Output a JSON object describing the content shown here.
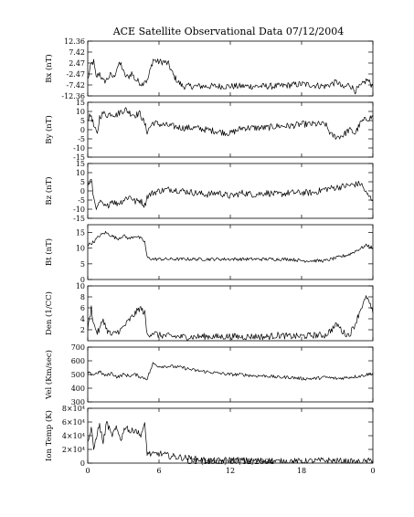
{
  "chart_data": {
    "type": "line",
    "title": "ACE Satellite Observational Data   07/12/2004",
    "xlabel": "UT (Hour)   07/12/2004",
    "x_ticks": [
      "0",
      "6",
      "12",
      "18",
      "0"
    ],
    "x_tick_hours": [
      0,
      6,
      12,
      18,
      24
    ],
    "xlim": [
      0,
      24
    ],
    "panels": [
      {
        "name": "Bx",
        "ylabel": "Bx (nT)",
        "ylim": [
          -12.36,
          12.36
        ],
        "yticks": [
          "12.36",
          "7.42",
          "2.47",
          "-2.47",
          "-7.42",
          "-12.36"
        ],
        "ytick_values": [
          12.36,
          7.42,
          2.47,
          -2.47,
          -7.42,
          -12.36
        ],
        "hours": [
          0,
          0.3,
          0.5,
          0.7,
          1.0,
          1.3,
          1.6,
          1.9,
          2.2,
          2.5,
          2.8,
          3.1,
          3.4,
          3.7,
          4.0,
          4.3,
          4.6,
          4.8,
          5.0,
          5.5,
          5.9,
          6.4,
          6.8,
          7.2,
          7.6,
          8,
          10,
          12,
          14,
          16,
          18,
          20,
          21,
          21.5,
          22,
          22.5,
          23,
          23.5,
          24
        ],
        "values": [
          -5,
          2,
          3,
          -4,
          -2,
          -6,
          -5,
          -3,
          -4,
          1,
          2,
          -3,
          -4,
          -2,
          -5,
          -6,
          -7,
          -5,
          -6,
          4,
          3,
          3,
          2,
          -3,
          -6,
          -8,
          -8,
          -8,
          -8,
          -8,
          -7,
          -8,
          -6,
          -9,
          -7,
          -10,
          -8,
          -5,
          -8
        ]
      },
      {
        "name": "By",
        "ylabel": "By (nT)",
        "ylim": [
          -15,
          15
        ],
        "yticks": [
          "15",
          "10",
          "5",
          "0",
          "-5",
          "-10",
          "-15"
        ],
        "ytick_values": [
          15,
          10,
          5,
          0,
          -5,
          -10,
          -15
        ],
        "hours": [
          0,
          0.3,
          0.5,
          0.8,
          1.0,
          1.3,
          1.6,
          2.0,
          2.4,
          2.8,
          3.2,
          3.6,
          4.0,
          4.4,
          4.8,
          5.0,
          5.5,
          6,
          7,
          8,
          9,
          10,
          11,
          12,
          13,
          14,
          15,
          16,
          17,
          18,
          19,
          20,
          20.5,
          21,
          21.5,
          22,
          22.5,
          23,
          23.5,
          24
        ],
        "values": [
          6,
          8,
          2,
          -3,
          7,
          9,
          8,
          9,
          8,
          10,
          11,
          9,
          8,
          9,
          3,
          -1,
          4,
          3,
          2,
          1,
          1,
          0,
          -1,
          -2,
          1,
          1,
          1,
          2,
          2,
          3,
          3,
          3,
          -3,
          -4,
          -3,
          0,
          -2,
          4,
          6,
          7
        ]
      },
      {
        "name": "Bz",
        "ylabel": "Bz (nT)",
        "ylim": [
          -15,
          15
        ],
        "yticks": [
          "15",
          "10",
          "5",
          "0",
          "-5",
          "-10",
          "-15"
        ],
        "ytick_values": [
          15,
          10,
          5,
          0,
          -5,
          -10,
          -15
        ],
        "hours": [
          0,
          0.3,
          0.5,
          0.8,
          1.0,
          1.3,
          1.6,
          2.0,
          2.4,
          2.8,
          3.2,
          3.6,
          4.0,
          4.4,
          4.8,
          5.0,
          5.5,
          6,
          7,
          8,
          9,
          10,
          11,
          12,
          13,
          14,
          15,
          16,
          17,
          18,
          19,
          20,
          21,
          22,
          23,
          23.5,
          24
        ],
        "values": [
          3,
          6,
          -4,
          -10,
          -6,
          -8,
          -9,
          -5,
          -7,
          -6,
          -4,
          -3,
          -6,
          -5,
          -8,
          -3,
          -1,
          0,
          1,
          0,
          -1,
          -2,
          -1,
          -3,
          -1,
          -2,
          -1,
          -2,
          -1,
          -1,
          -1,
          1,
          2,
          3,
          4,
          -2,
          -5
        ]
      },
      {
        "name": "Bt",
        "ylabel": "Bt (nT)",
        "ylim": [
          0,
          17.5
        ],
        "yticks": [
          "15",
          "10",
          "5",
          "0"
        ],
        "ytick_values": [
          15,
          10,
          5,
          0
        ],
        "hours": [
          0,
          0.5,
          1.0,
          1.5,
          2.0,
          2.5,
          3.0,
          3.5,
          4.0,
          4.5,
          4.8,
          5.0,
          5.5,
          6,
          7,
          8,
          9,
          10,
          11,
          12,
          13,
          14,
          15,
          16,
          17,
          18,
          19,
          20,
          21,
          22,
          22.5,
          23,
          23.5,
          24
        ],
        "values": [
          11,
          12,
          14,
          15,
          14,
          13,
          14,
          13,
          14,
          13,
          12,
          7,
          6.5,
          6.5,
          6.5,
          6.5,
          6.5,
          6.5,
          6.5,
          6.5,
          6.5,
          6.5,
          6.5,
          6.5,
          6.5,
          6,
          6,
          6,
          7,
          8,
          9,
          10,
          11,
          10
        ]
      },
      {
        "name": "Den",
        "ylabel": "Den (1/CC)",
        "ylim": [
          0,
          10
        ],
        "yticks": [
          "10",
          "8",
          "6",
          "4",
          "2"
        ],
        "ytick_values": [
          10,
          8,
          6,
          4,
          2
        ],
        "hours": [
          0,
          0.3,
          0.5,
          0.8,
          1.0,
          1.3,
          1.6,
          2.0,
          2.4,
          2.8,
          3.2,
          3.6,
          4.0,
          4.4,
          4.8,
          5.0,
          5.5,
          6,
          7,
          8,
          9,
          10,
          11,
          12,
          13,
          14,
          15,
          16,
          17,
          18,
          19,
          20,
          20.5,
          21,
          21.5,
          22,
          22.5,
          23,
          23.5,
          24
        ],
        "values": [
          2,
          6,
          3,
          1.5,
          2,
          4,
          2,
          1,
          1.5,
          2,
          3,
          4,
          5,
          6,
          5,
          1,
          1.5,
          1,
          0.8,
          0.7,
          0.7,
          0.8,
          0.7,
          0.8,
          0.7,
          0.8,
          0.7,
          1,
          0.8,
          0.8,
          1,
          1,
          2,
          3,
          1.5,
          1,
          3,
          6,
          8,
          5
        ]
      },
      {
        "name": "Vel",
        "ylabel": "Vel (Km/sec)",
        "ylim": [
          300,
          700
        ],
        "yticks": [
          "700",
          "600",
          "500",
          "400",
          "300"
        ],
        "ytick_values": [
          700,
          600,
          500,
          400,
          300
        ],
        "hours": [
          0,
          0.5,
          1.0,
          1.5,
          2.0,
          2.5,
          3.0,
          3.5,
          4.0,
          4.5,
          5.0,
          5.5,
          6,
          7,
          8,
          9,
          10,
          11,
          12,
          13,
          14,
          15,
          16,
          17,
          18,
          19,
          20,
          21,
          22,
          23,
          24
        ],
        "values": [
          510,
          500,
          520,
          490,
          510,
          480,
          500,
          490,
          500,
          480,
          470,
          580,
          560,
          560,
          550,
          530,
          520,
          510,
          500,
          500,
          490,
          490,
          480,
          480,
          470,
          470,
          480,
          470,
          480,
          490,
          510
        ]
      },
      {
        "name": "Ion Temp",
        "ylabel": "Ion Temp (K)",
        "ylim": [
          0,
          80000
        ],
        "yticks": [
          "8×10⁴",
          "6×10⁴",
          "4×10⁴",
          "2×10⁴",
          "0"
        ],
        "ytick_values": [
          80000,
          60000,
          40000,
          20000,
          0
        ],
        "hours": [
          0,
          0.3,
          0.5,
          0.8,
          1.0,
          1.3,
          1.6,
          2.0,
          2.4,
          2.8,
          3.2,
          3.6,
          4.0,
          4.4,
          4.8,
          5.0,
          5.5,
          6,
          7,
          8,
          9,
          10,
          11,
          12,
          13,
          14,
          15,
          16,
          17,
          18,
          19,
          20,
          21,
          22,
          23,
          24
        ],
        "values": [
          30000,
          50000,
          20000,
          45000,
          55000,
          30000,
          60000,
          40000,
          50000,
          35000,
          55000,
          45000,
          50000,
          40000,
          55000,
          15000,
          12000,
          14000,
          10000,
          8000,
          6000,
          4000,
          3000,
          5000,
          4000,
          3000,
          4000,
          2000,
          3000,
          2000,
          3000,
          4000,
          3000,
          2000,
          1000,
          4000
        ]
      }
    ]
  }
}
